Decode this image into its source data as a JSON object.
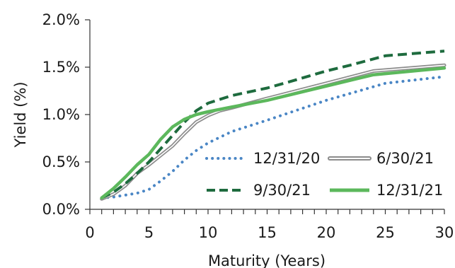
{
  "chart_data": {
    "type": "line",
    "xlabel": "Maturity (Years)",
    "ylabel": "Yield (%)",
    "xlim": [
      0,
      30
    ],
    "ylim": [
      0,
      2.0
    ],
    "x_ticks": [
      0,
      5,
      10,
      15,
      20,
      25,
      30
    ],
    "x_tick_labels": [
      "0",
      "5",
      "10",
      "15",
      "20",
      "25",
      "30"
    ],
    "y_ticks": [
      0,
      0.5,
      1.0,
      1.5,
      2.0
    ],
    "y_tick_labels": [
      "0.0%",
      "0.5%",
      "1.0%",
      "1.5%",
      "2.0%"
    ],
    "grid": false,
    "legend_position": "bottom-right",
    "series": [
      {
        "name": "12/31/20",
        "style": "dotted",
        "color": "#4a86c5",
        "points": [
          [
            1,
            0.12
          ],
          [
            2,
            0.13
          ],
          [
            3,
            0.15
          ],
          [
            4,
            0.17
          ],
          [
            5,
            0.21
          ],
          [
            6,
            0.3
          ],
          [
            7,
            0.4
          ],
          [
            8,
            0.52
          ],
          [
            9,
            0.62
          ],
          [
            10,
            0.7
          ],
          [
            12,
            0.82
          ],
          [
            15,
            0.94
          ],
          [
            20,
            1.15
          ],
          [
            25,
            1.33
          ],
          [
            30,
            1.4
          ]
        ]
      },
      {
        "name": "6/30/21",
        "style": "double",
        "color": "#8c8c8c",
        "points": [
          [
            1,
            0.11
          ],
          [
            2,
            0.16
          ],
          [
            3,
            0.25
          ],
          [
            4,
            0.38
          ],
          [
            5,
            0.47
          ],
          [
            6,
            0.57
          ],
          [
            7,
            0.67
          ],
          [
            8,
            0.8
          ],
          [
            9,
            0.92
          ],
          [
            10,
            0.99
          ],
          [
            11,
            1.04
          ],
          [
            12,
            1.07
          ],
          [
            15,
            1.17
          ],
          [
            20,
            1.33
          ],
          [
            24,
            1.46
          ],
          [
            30,
            1.52
          ]
        ]
      },
      {
        "name": "9/30/21",
        "style": "dashed",
        "color": "#1e6b3e",
        "points": [
          [
            1,
            0.12
          ],
          [
            2,
            0.18
          ],
          [
            3,
            0.27
          ],
          [
            4,
            0.38
          ],
          [
            5,
            0.5
          ],
          [
            6,
            0.64
          ],
          [
            7,
            0.78
          ],
          [
            8,
            0.92
          ],
          [
            9,
            1.04
          ],
          [
            10,
            1.12
          ],
          [
            12,
            1.2
          ],
          [
            15,
            1.28
          ],
          [
            17,
            1.35
          ],
          [
            20,
            1.46
          ],
          [
            22,
            1.52
          ],
          [
            25,
            1.62
          ],
          [
            30,
            1.67
          ]
        ]
      },
      {
        "name": "12/31/21",
        "style": "solid",
        "color": "#5cb85c",
        "points": [
          [
            1,
            0.12
          ],
          [
            2,
            0.22
          ],
          [
            3,
            0.34
          ],
          [
            4,
            0.47
          ],
          [
            5,
            0.58
          ],
          [
            6,
            0.74
          ],
          [
            7,
            0.87
          ],
          [
            8,
            0.95
          ],
          [
            9,
            1.0
          ],
          [
            10,
            1.03
          ],
          [
            12,
            1.08
          ],
          [
            15,
            1.15
          ],
          [
            20,
            1.3
          ],
          [
            24,
            1.42
          ],
          [
            30,
            1.49
          ]
        ]
      }
    ]
  }
}
